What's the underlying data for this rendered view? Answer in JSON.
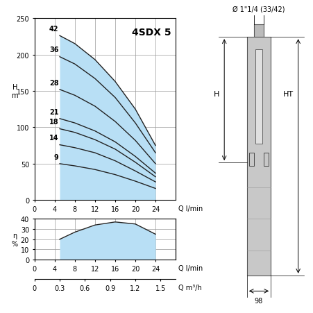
{
  "chart_data": [
    {
      "type": "area",
      "title": "4SDX 5",
      "x_label": "Q l/min",
      "y_label": "H\nm",
      "color": "#b8dff5",
      "xlim": [
        0,
        28
      ],
      "xticks": [
        0,
        4,
        8,
        12,
        16,
        20,
        24
      ],
      "ylim": [
        0,
        250
      ],
      "yticks": [
        0,
        50,
        100,
        150,
        200,
        250
      ],
      "grid": true,
      "x": [
        5,
        8,
        12,
        16,
        20,
        24
      ],
      "series": [
        {
          "name": "42",
          "color": "#222222",
          "values": [
            226,
            215,
            193,
            163,
            125,
            75
          ]
        },
        {
          "name": "36",
          "color": "#222222",
          "values": [
            197,
            187,
            167,
            141,
            106,
            65
          ]
        },
        {
          "name": "28",
          "color": "#222222",
          "values": [
            152,
            144,
            129,
            108,
            82,
            50
          ]
        },
        {
          "name": "21",
          "color": "#222222",
          "values": [
            112,
            106,
            95,
            80,
            60,
            37
          ]
        },
        {
          "name": "18",
          "color": "#222222",
          "values": [
            98,
            93,
            83,
            70,
            52,
            32
          ]
        },
        {
          "name": "14",
          "color": "#222222",
          "values": [
            76,
            72,
            65,
            54,
            40,
            25
          ]
        },
        {
          "name": "9",
          "color": "#222222",
          "values": [
            50,
            47,
            42,
            35,
            26,
            16
          ]
        }
      ]
    },
    {
      "type": "area",
      "x_label": "Q l/min",
      "x2label": "Q m³/h",
      "y_label": "η\n%",
      "color": "#b8dff5",
      "xlim": [
        0,
        28
      ],
      "xticks": [
        0,
        4,
        8,
        12,
        16,
        20,
        24
      ],
      "x2lim": [
        0,
        1.68
      ],
      "x2ticks": [
        0,
        0.3,
        0.6,
        0.9,
        1.2,
        1.5
      ],
      "ylim": [
        0,
        40
      ],
      "yticks": [
        0,
        10,
        20,
        30,
        40
      ],
      "grid": true,
      "x": [
        5,
        8,
        12,
        16,
        20,
        24
      ],
      "series": [
        {
          "name": "η",
          "color": "#222222",
          "values": [
            20,
            27,
            34,
            37,
            35,
            25
          ]
        }
      ]
    }
  ],
  "diagram": {
    "outlet": "Ø 1\"1/4 (33/42)",
    "height_label": "H",
    "total_height_label": "HT",
    "diameter": "98"
  }
}
